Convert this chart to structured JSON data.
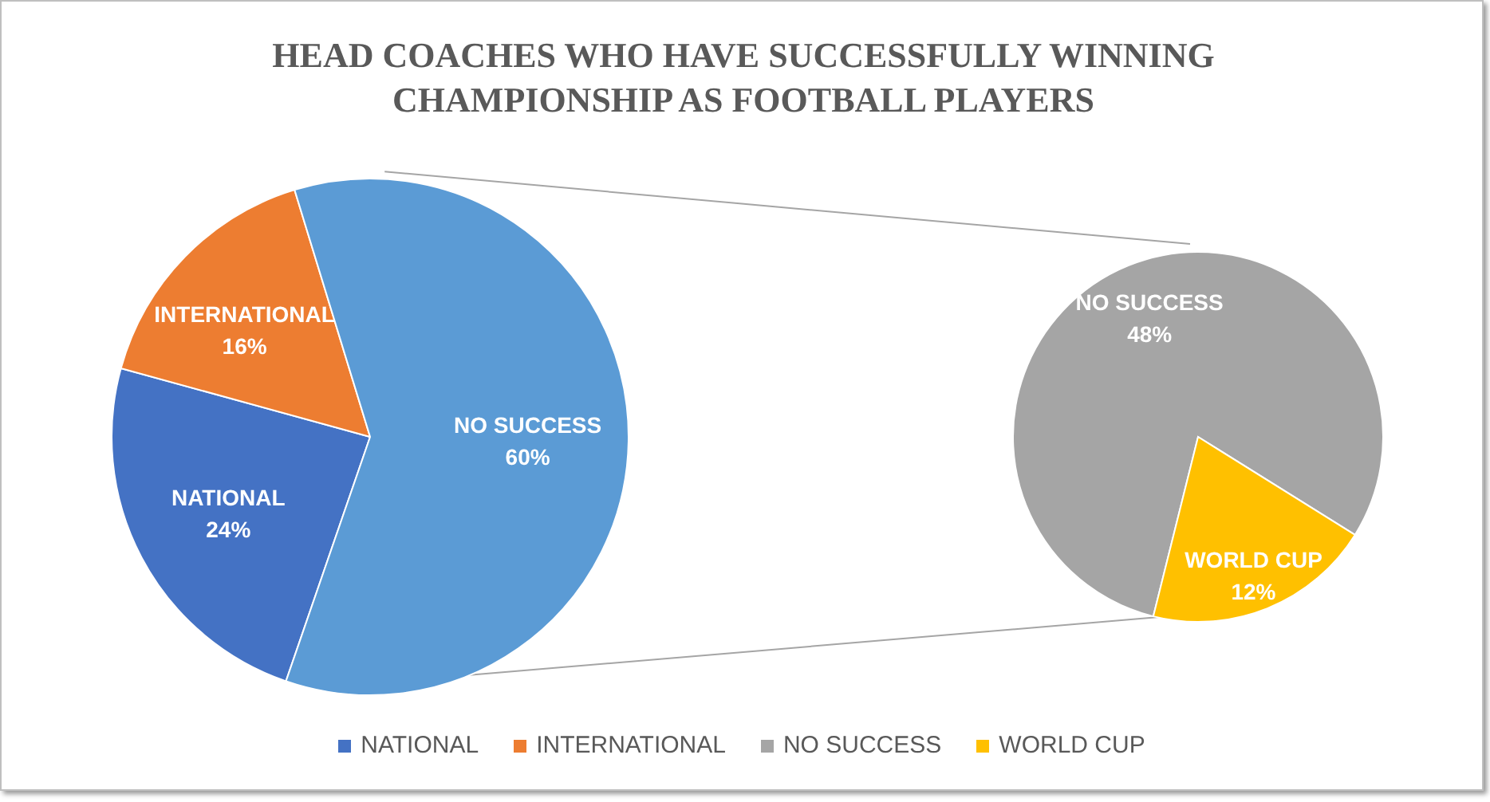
{
  "chart_data": [
    {
      "type": "pie",
      "title": "HEAD COACHES WHO HAVE SUCCESSFULLY WINNING CHAMPIONSHIP AS FOOTBALL PLAYERS",
      "categories": [
        "NATIONAL",
        "INTERNATIONAL",
        "NO SUCCESS"
      ],
      "values": [
        24,
        16,
        60
      ],
      "value_labels": [
        "24%",
        "16%",
        "60%"
      ],
      "colors": [
        "#4472c4",
        "#ed7d31",
        "#5b9bd5"
      ],
      "legend": "bottom"
    },
    {
      "type": "pie",
      "categories": [
        "NO SUCCESS",
        "WORLD CUP"
      ],
      "values": [
        48,
        12
      ],
      "value_labels": [
        "48%",
        "12%"
      ],
      "colors": [
        "#a5a5a5",
        "#ffc000"
      ],
      "legend": "bottom"
    }
  ]
}
